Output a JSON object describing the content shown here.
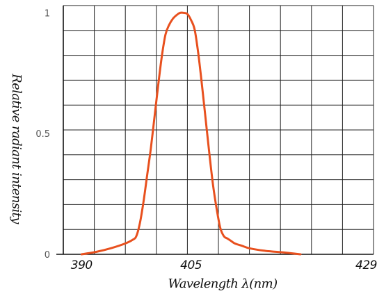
{
  "chart_data": {
    "type": "line",
    "title": "",
    "xlabel": "Wavelength λ(nm)",
    "ylabel": "Relative radiant intensity",
    "x_tick_labels": [
      "390",
      "405",
      "429"
    ],
    "y_tick_labels": [
      "0",
      "0.5",
      "1"
    ],
    "xlim": [
      387.5,
      430
    ],
    "ylim": [
      0,
      1.03
    ],
    "grid": true,
    "legend": "none",
    "series": [
      {
        "color": "#e8501e",
        "x": [
          390,
          392,
          394,
          396,
          397,
          397.5,
          398,
          398.5,
          399,
          399.5,
          400,
          400.5,
          401,
          401.5,
          402,
          402.5,
          403,
          403.5,
          404,
          404.5,
          405,
          405.5,
          406,
          406.5,
          407,
          407.5,
          408,
          408.5,
          409,
          409.5,
          410,
          410.5,
          411,
          412,
          413,
          415,
          418,
          420
        ],
        "y": [
          0.0,
          0.01,
          0.025,
          0.045,
          0.06,
          0.075,
          0.13,
          0.22,
          0.33,
          0.44,
          0.57,
          0.7,
          0.82,
          0.91,
          0.95,
          0.975,
          0.99,
          1.0,
          1.0,
          0.995,
          0.97,
          0.93,
          0.83,
          0.7,
          0.56,
          0.42,
          0.29,
          0.19,
          0.11,
          0.075,
          0.065,
          0.055,
          0.045,
          0.035,
          0.025,
          0.015,
          0.007,
          0.0
        ]
      }
    ]
  }
}
